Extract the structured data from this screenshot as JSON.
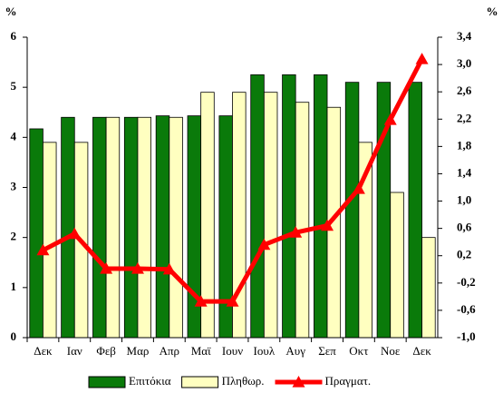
{
  "chart_data": {
    "type": "bar-line",
    "y_label": "%",
    "y2_label": "%",
    "categories": [
      "Δεκ",
      "Ιαν",
      "Φεβ",
      "Μαρ",
      "Απρ",
      "Μαϊ",
      "Ιουν",
      "Ιουλ",
      "Αυγ",
      "Σεπ",
      "Οκτ",
      "Νοε",
      "Δεκ"
    ],
    "series": [
      {
        "name": "Επιτόκια",
        "color": "#0a7a0a",
        "type": "bar",
        "values": [
          4.17,
          4.4,
          4.4,
          4.4,
          4.43,
          4.43,
          4.43,
          5.25,
          5.25,
          5.25,
          5.1,
          5.1,
          5.1
        ]
      },
      {
        "name": "Πληθωρ.",
        "color": "#ffffc0",
        "type": "bar",
        "values": [
          3.9,
          3.9,
          4.4,
          4.4,
          4.4,
          4.9,
          4.9,
          4.9,
          4.7,
          4.6,
          3.9,
          2.9,
          2.0
        ]
      },
      {
        "name": "Πραγματ.",
        "color": "#ff0000",
        "type": "line",
        "axis": "y2",
        "values": [
          0.28,
          0.52,
          0.01,
          0.01,
          0.0,
          -0.47,
          -0.47,
          0.36,
          0.54,
          0.64,
          1.18,
          2.19,
          3.08
        ]
      }
    ],
    "ylim": [
      0,
      6
    ],
    "yticks": [
      0,
      1,
      2,
      3,
      4,
      5,
      6
    ],
    "y2lim": [
      -1.0,
      3.4
    ],
    "y2ticks": [
      {
        "value": -1.0,
        "label": "-1,0"
      },
      {
        "value": -0.6,
        "label": "-0,6"
      },
      {
        "value": -0.2,
        "label": "-0,2"
      },
      {
        "value": 0.2,
        "label": "0,2"
      },
      {
        "value": 0.6,
        "label": "0,6"
      },
      {
        "value": 1.0,
        "label": "1,0"
      },
      {
        "value": 1.4,
        "label": "1,4"
      },
      {
        "value": 1.8,
        "label": "1,8"
      },
      {
        "value": 2.2,
        "label": "2,2"
      },
      {
        "value": 2.6,
        "label": "2,6"
      },
      {
        "value": 3.0,
        "label": "3,0"
      },
      {
        "value": 3.4,
        "label": "3,4"
      }
    ],
    "legend": "bottom",
    "grid": false
  }
}
